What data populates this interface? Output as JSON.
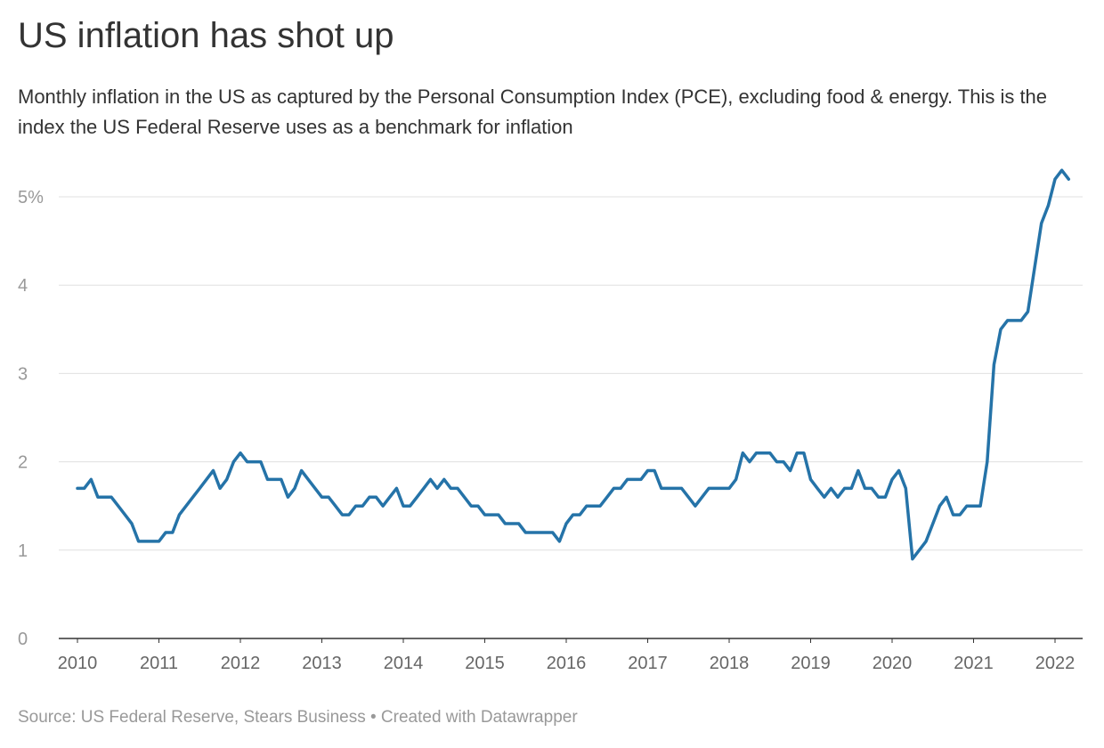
{
  "header": {
    "title": "US inflation has shot up",
    "subtitle": "Monthly inflation in the US as captured by the Personal Consumption Index (PCE), excluding food & energy. This is the index the US Federal Reserve uses as a benchmark for inflation"
  },
  "footer": {
    "source": "Source: US Federal Reserve, Stears Business • Created with Datawrapper"
  },
  "colors": {
    "line": "#2573a8",
    "grid": "#e0e0e0",
    "axis": "#333333"
  },
  "chart_data": {
    "type": "line",
    "title": "US inflation has shot up",
    "xlabel": "",
    "ylabel": "",
    "ylim": [
      0,
      5.5
    ],
    "yticks": [
      0,
      1,
      2,
      3,
      4,
      5
    ],
    "ytick_labels": [
      "0",
      "1",
      "2",
      "3",
      "4",
      "5%"
    ],
    "xticks": [
      2010,
      2011,
      2012,
      2013,
      2014,
      2015,
      2016,
      2017,
      2018,
      2019,
      2020,
      2021,
      2022
    ],
    "xtick_labels": [
      "2010",
      "2011",
      "2012",
      "2013",
      "2014",
      "2015",
      "2016",
      "2017",
      "2018",
      "2019",
      "2020",
      "2021",
      "2022"
    ],
    "grid": true,
    "legend": "none",
    "x_start": "2010-01",
    "series": [
      {
        "values": [
          1.7,
          1.7,
          1.8,
          1.6,
          1.6,
          1.6,
          1.5,
          1.4,
          1.3,
          1.1,
          1.1,
          1.1,
          1.1,
          1.2,
          1.2,
          1.4,
          1.5,
          1.6,
          1.7,
          1.8,
          1.9,
          1.7,
          1.8,
          2.0,
          2.1,
          2.0,
          2.0,
          2.0,
          1.8,
          1.8,
          1.8,
          1.6,
          1.7,
          1.9,
          1.8,
          1.7,
          1.6,
          1.6,
          1.5,
          1.4,
          1.4,
          1.5,
          1.5,
          1.6,
          1.6,
          1.5,
          1.6,
          1.7,
          1.5,
          1.5,
          1.6,
          1.7,
          1.8,
          1.7,
          1.8,
          1.7,
          1.7,
          1.6,
          1.5,
          1.5,
          1.4,
          1.4,
          1.4,
          1.3,
          1.3,
          1.3,
          1.2,
          1.2,
          1.2,
          1.2,
          1.2,
          1.1,
          1.3,
          1.4,
          1.4,
          1.5,
          1.5,
          1.5,
          1.6,
          1.7,
          1.7,
          1.8,
          1.8,
          1.8,
          1.9,
          1.9,
          1.7,
          1.7,
          1.7,
          1.7,
          1.6,
          1.5,
          1.6,
          1.7,
          1.7,
          1.7,
          1.7,
          1.8,
          2.1,
          2.0,
          2.1,
          2.1,
          2.1,
          2.0,
          2.0,
          1.9,
          2.1,
          2.1,
          1.8,
          1.7,
          1.6,
          1.7,
          1.6,
          1.7,
          1.7,
          1.9,
          1.7,
          1.7,
          1.6,
          1.6,
          1.8,
          1.9,
          1.7,
          0.9,
          1.0,
          1.1,
          1.3,
          1.5,
          1.6,
          1.4,
          1.4,
          1.5,
          1.5,
          1.5,
          2.0,
          3.1,
          3.5,
          3.6,
          3.6,
          3.6,
          3.7,
          4.2,
          4.7,
          4.9,
          5.2,
          5.3,
          5.2
        ]
      }
    ]
  }
}
